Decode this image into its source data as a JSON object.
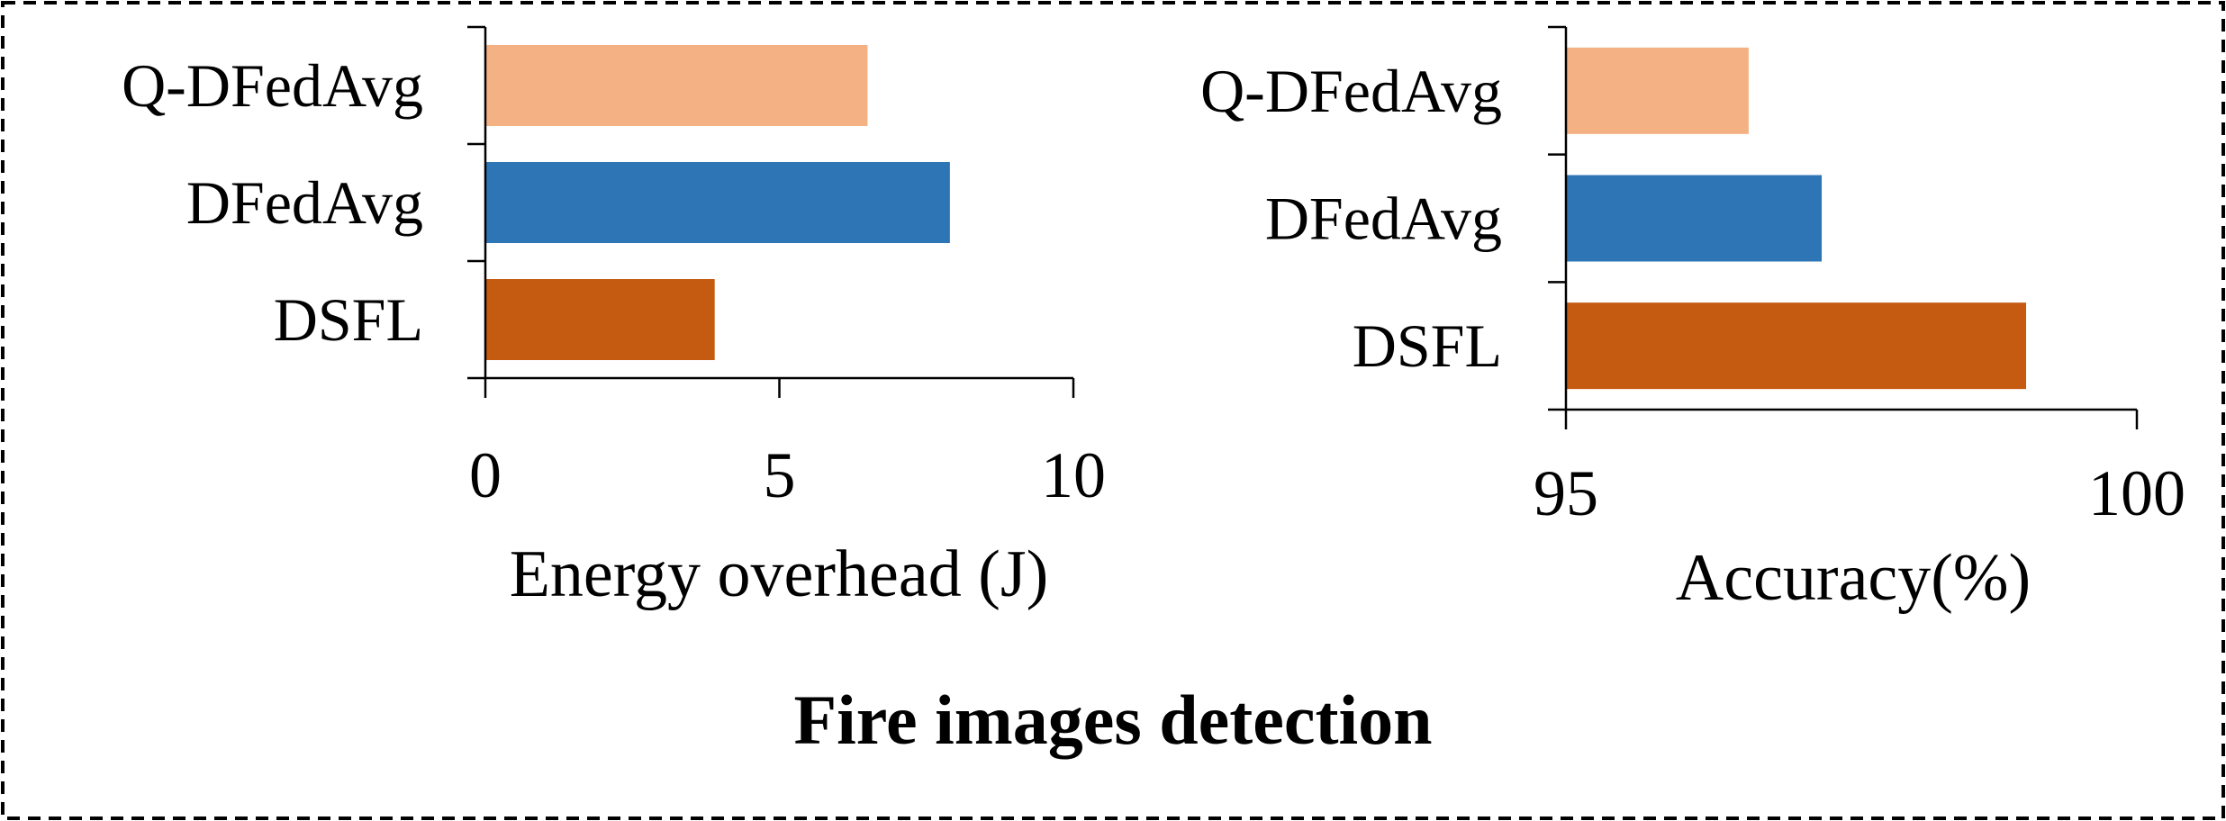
{
  "caption": "Fire images detection",
  "colors": {
    "q_dfedavg": "#F4B183",
    "dfedavg": "#2E75B6",
    "dsfl": "#C55A11",
    "frame": "#000000"
  },
  "chart_data": [
    {
      "type": "bar",
      "orientation": "horizontal",
      "categories": [
        "Q-DFedAvg",
        "DFedAvg",
        "DSFL"
      ],
      "values": [
        6.5,
        7.9,
        3.9
      ],
      "colors": [
        "#F4B183",
        "#2E75B6",
        "#C55A11"
      ],
      "xlabel": "Energy overhead (J)",
      "ylabel": "",
      "xlim": [
        0,
        10
      ],
      "xticks": [
        "0",
        "5",
        "10"
      ],
      "grid": false
    },
    {
      "type": "bar",
      "orientation": "horizontal",
      "categories": [
        "Q-DFedAvg",
        "DFedAvg",
        "DSFL"
      ],
      "values": [
        96.6,
        97.24,
        99.03
      ],
      "colors": [
        "#F4B183",
        "#2E75B6",
        "#C55A11"
      ],
      "xlabel": "Accuracy(%)",
      "ylabel": "",
      "xlim": [
        95,
        100
      ],
      "xticks": [
        "95",
        "100"
      ],
      "grid": false
    }
  ]
}
